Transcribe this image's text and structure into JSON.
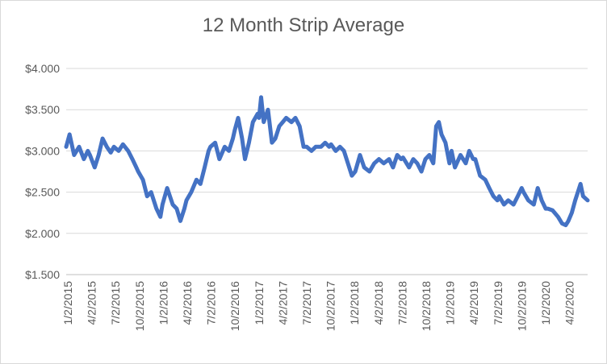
{
  "chart_data": {
    "type": "line",
    "title": "12 Month Strip Average",
    "xlabel": "",
    "ylabel": "",
    "ylim": [
      1.5,
      4.0
    ],
    "y_ticks": [
      {
        "value": 4.0,
        "label": "$4.000"
      },
      {
        "value": 3.5,
        "label": "$3.500"
      },
      {
        "value": 3.0,
        "label": "$3.000"
      },
      {
        "value": 2.5,
        "label": "$2.500"
      },
      {
        "value": 2.0,
        "label": "$2.000"
      },
      {
        "value": 1.5,
        "label": "$1.500"
      }
    ],
    "x_range": [
      "2015-01-02",
      "2020-06-01"
    ],
    "x_tick_labels": [
      "1/2/2015",
      "4/2/2015",
      "7/2/2015",
      "10/2/2015",
      "1/2/2016",
      "4/2/2016",
      "7/2/2016",
      "10/2/2016",
      "1/2/2017",
      "4/2/2017",
      "7/2/2017",
      "10/2/2017",
      "1/2/2018",
      "4/2/2018",
      "7/2/2018",
      "10/2/2018",
      "1/2/2019",
      "4/2/2019",
      "7/2/2019",
      "10/2/2019",
      "1/2/2020",
      "4/2/2020"
    ],
    "grid": true,
    "legend": "none",
    "line_color": "#4472c4",
    "series": [
      {
        "points": [
          [
            "2015-01-02",
            3.05
          ],
          [
            "2015-01-15",
            3.2
          ],
          [
            "2015-02-01",
            2.95
          ],
          [
            "2015-02-20",
            3.05
          ],
          [
            "2015-03-10",
            2.9
          ],
          [
            "2015-03-25",
            3.0
          ],
          [
            "2015-04-02",
            2.95
          ],
          [
            "2015-04-20",
            2.8
          ],
          [
            "2015-05-05",
            2.95
          ],
          [
            "2015-05-20",
            3.15
          ],
          [
            "2015-06-05",
            3.05
          ],
          [
            "2015-06-20",
            2.98
          ],
          [
            "2015-07-02",
            3.05
          ],
          [
            "2015-07-20",
            3.0
          ],
          [
            "2015-08-05",
            3.08
          ],
          [
            "2015-08-25",
            3.0
          ],
          [
            "2015-09-10",
            2.9
          ],
          [
            "2015-09-25",
            2.8
          ],
          [
            "2015-10-02",
            2.75
          ],
          [
            "2015-10-20",
            2.65
          ],
          [
            "2015-11-05",
            2.45
          ],
          [
            "2015-11-20",
            2.5
          ],
          [
            "2015-12-10",
            2.3
          ],
          [
            "2015-12-25",
            2.2
          ],
          [
            "2016-01-02",
            2.35
          ],
          [
            "2016-01-20",
            2.55
          ],
          [
            "2016-02-10",
            2.35
          ],
          [
            "2016-02-25",
            2.3
          ],
          [
            "2016-03-10",
            2.15
          ],
          [
            "2016-03-25",
            2.3
          ],
          [
            "2016-04-02",
            2.4
          ],
          [
            "2016-04-20",
            2.5
          ],
          [
            "2016-05-10",
            2.65
          ],
          [
            "2016-05-25",
            2.6
          ],
          [
            "2016-06-10",
            2.8
          ],
          [
            "2016-06-25",
            3.0
          ],
          [
            "2016-07-02",
            3.05
          ],
          [
            "2016-07-20",
            3.1
          ],
          [
            "2016-08-05",
            2.9
          ],
          [
            "2016-08-25",
            3.05
          ],
          [
            "2016-09-10",
            3.0
          ],
          [
            "2016-09-25",
            3.15
          ],
          [
            "2016-10-02",
            3.25
          ],
          [
            "2016-10-15",
            3.4
          ],
          [
            "2016-10-30",
            3.15
          ],
          [
            "2016-11-10",
            2.9
          ],
          [
            "2016-11-25",
            3.1
          ],
          [
            "2016-12-10",
            3.35
          ],
          [
            "2016-12-28",
            3.45
          ],
          [
            "2017-01-02",
            3.4
          ],
          [
            "2017-01-10",
            3.65
          ],
          [
            "2017-01-20",
            3.35
          ],
          [
            "2017-02-05",
            3.5
          ],
          [
            "2017-02-20",
            3.1
          ],
          [
            "2017-03-05",
            3.15
          ],
          [
            "2017-03-20",
            3.3
          ],
          [
            "2017-04-02",
            3.35
          ],
          [
            "2017-04-15",
            3.4
          ],
          [
            "2017-05-05",
            3.35
          ],
          [
            "2017-05-20",
            3.4
          ],
          [
            "2017-06-05",
            3.3
          ],
          [
            "2017-06-20",
            3.05
          ],
          [
            "2017-07-02",
            3.05
          ],
          [
            "2017-07-20",
            3.0
          ],
          [
            "2017-08-05",
            3.05
          ],
          [
            "2017-08-25",
            3.05
          ],
          [
            "2017-09-10",
            3.1
          ],
          [
            "2017-09-25",
            3.05
          ],
          [
            "2017-10-02",
            3.08
          ],
          [
            "2017-10-20",
            3.0
          ],
          [
            "2017-11-05",
            3.05
          ],
          [
            "2017-11-20",
            3.0
          ],
          [
            "2017-12-05",
            2.85
          ],
          [
            "2017-12-20",
            2.7
          ],
          [
            "2018-01-02",
            2.75
          ],
          [
            "2018-01-20",
            2.95
          ],
          [
            "2018-02-05",
            2.8
          ],
          [
            "2018-02-25",
            2.75
          ],
          [
            "2018-03-15",
            2.85
          ],
          [
            "2018-04-02",
            2.9
          ],
          [
            "2018-04-20",
            2.85
          ],
          [
            "2018-05-10",
            2.9
          ],
          [
            "2018-05-25",
            2.8
          ],
          [
            "2018-06-10",
            2.95
          ],
          [
            "2018-06-25",
            2.9
          ],
          [
            "2018-07-02",
            2.92
          ],
          [
            "2018-07-25",
            2.8
          ],
          [
            "2018-08-10",
            2.9
          ],
          [
            "2018-08-25",
            2.85
          ],
          [
            "2018-09-10",
            2.75
          ],
          [
            "2018-09-25",
            2.9
          ],
          [
            "2018-10-10",
            2.95
          ],
          [
            "2018-10-25",
            2.85
          ],
          [
            "2018-11-05",
            3.3
          ],
          [
            "2018-11-15",
            3.35
          ],
          [
            "2018-11-25",
            3.2
          ],
          [
            "2018-12-10",
            3.1
          ],
          [
            "2018-12-25",
            2.85
          ],
          [
            "2019-01-02",
            3.0
          ],
          [
            "2019-01-15",
            2.8
          ],
          [
            "2019-02-05",
            2.95
          ],
          [
            "2019-02-25",
            2.85
          ],
          [
            "2019-03-10",
            3.0
          ],
          [
            "2019-03-25",
            2.9
          ],
          [
            "2019-04-02",
            2.9
          ],
          [
            "2019-04-20",
            2.7
          ],
          [
            "2019-05-10",
            2.65
          ],
          [
            "2019-05-25",
            2.55
          ],
          [
            "2019-06-10",
            2.45
          ],
          [
            "2019-06-25",
            2.4
          ],
          [
            "2019-07-02",
            2.45
          ],
          [
            "2019-07-20",
            2.35
          ],
          [
            "2019-08-05",
            2.4
          ],
          [
            "2019-08-25",
            2.35
          ],
          [
            "2019-09-10",
            2.45
          ],
          [
            "2019-09-25",
            2.55
          ],
          [
            "2019-10-02",
            2.5
          ],
          [
            "2019-10-20",
            2.4
          ],
          [
            "2019-11-10",
            2.35
          ],
          [
            "2019-11-25",
            2.55
          ],
          [
            "2019-12-10",
            2.4
          ],
          [
            "2019-12-25",
            2.3
          ],
          [
            "2020-01-02",
            2.3
          ],
          [
            "2020-01-20",
            2.28
          ],
          [
            "2020-02-10",
            2.2
          ],
          [
            "2020-02-25",
            2.12
          ],
          [
            "2020-03-10",
            2.1
          ],
          [
            "2020-03-20",
            2.15
          ],
          [
            "2020-04-02",
            2.25
          ],
          [
            "2020-04-15",
            2.4
          ],
          [
            "2020-04-25",
            2.5
          ],
          [
            "2020-05-05",
            2.6
          ],
          [
            "2020-05-15",
            2.45
          ],
          [
            "2020-06-01",
            2.4
          ]
        ]
      }
    ]
  }
}
